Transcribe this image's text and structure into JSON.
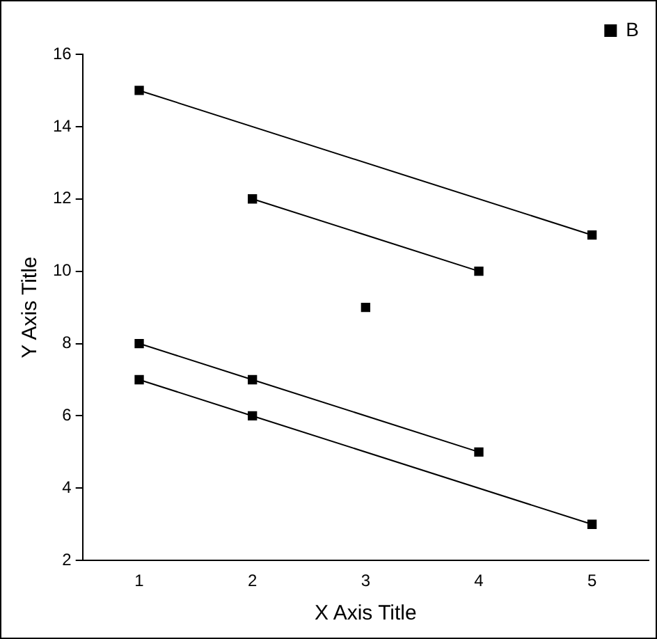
{
  "chart_data": {
    "type": "line",
    "xlabel": "X Axis Title",
    "ylabel": "Y Axis Title",
    "series": [
      {
        "name": "B",
        "color": "#000000",
        "x": [
          1,
          5
        ],
        "values": [
          15,
          11
        ]
      },
      {
        "color": "#000000",
        "x": [
          2,
          4
        ],
        "values": [
          12,
          10
        ]
      },
      {
        "color": "#000000",
        "x": [
          3
        ],
        "values": [
          9
        ]
      },
      {
        "color": "#000000",
        "x": [
          1,
          2,
          4
        ],
        "values": [
          8,
          7,
          5
        ]
      },
      {
        "color": "#000000",
        "x": [
          1,
          2,
          5
        ],
        "values": [
          7,
          6,
          3
        ]
      }
    ],
    "xlim": [
      0.5,
      5.5
    ],
    "xticks": [
      1,
      2,
      3,
      4,
      5
    ],
    "ylim": [
      2,
      16
    ],
    "yticks": [
      2,
      4,
      6,
      8,
      10,
      12,
      14,
      16
    ],
    "grid": false,
    "legend": "top right",
    "marker": "square",
    "line_style": "solid"
  }
}
